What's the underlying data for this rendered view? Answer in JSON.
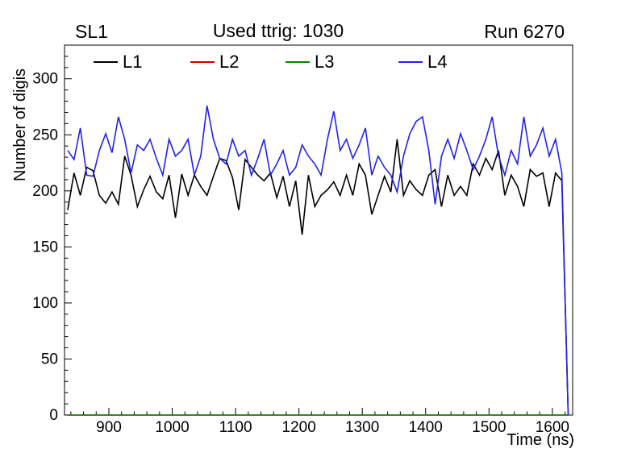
{
  "header": {
    "left": "SL1",
    "center": "Used ttrig: 1030",
    "right": "Run 6270"
  },
  "axes": {
    "x_label": "Time (ns)",
    "y_label": "Number of digis",
    "x_ticks": [
      900,
      1000,
      1100,
      1200,
      1300,
      1400,
      1500,
      1600
    ],
    "x_minor_step": 20,
    "y_ticks": [
      0,
      50,
      100,
      150,
      200,
      250,
      300
    ],
    "y_minor_step": 10
  },
  "legend": [
    {
      "label": "L1",
      "color": "#000000"
    },
    {
      "label": "L2",
      "color": "#cc0000"
    },
    {
      "label": "L3",
      "color": "#008800"
    },
    {
      "label": "L4",
      "color": "#2222ee"
    }
  ],
  "chart_data": {
    "type": "line",
    "title": "Used ttrig: 1030",
    "xlabel": "Time (ns)",
    "ylabel": "Number of digis",
    "xlim": [
      830,
      1632
    ],
    "ylim": [
      0,
      330
    ],
    "grid": false,
    "legend_position": "top",
    "x": [
      835,
      845,
      855,
      865,
      875,
      885,
      895,
      905,
      915,
      925,
      935,
      945,
      955,
      965,
      975,
      985,
      995,
      1005,
      1015,
      1025,
      1035,
      1045,
      1055,
      1065,
      1075,
      1085,
      1095,
      1105,
      1115,
      1125,
      1135,
      1145,
      1155,
      1165,
      1175,
      1185,
      1195,
      1205,
      1215,
      1225,
      1235,
      1245,
      1255,
      1265,
      1275,
      1285,
      1295,
      1305,
      1315,
      1325,
      1335,
      1345,
      1355,
      1365,
      1375,
      1385,
      1395,
      1405,
      1415,
      1425,
      1435,
      1445,
      1455,
      1465,
      1475,
      1485,
      1495,
      1505,
      1515,
      1525,
      1535,
      1545,
      1555,
      1565,
      1575,
      1585,
      1595,
      1605,
      1615,
      1625
    ],
    "series": [
      {
        "name": "L1",
        "color": "#000000",
        "values": [
          183,
          216,
          196,
          221,
          218,
          196,
          189,
          199,
          188,
          231,
          214,
          186,
          201,
          213,
          199,
          193,
          214,
          176,
          215,
          196,
          214,
          204,
          196,
          213,
          229,
          227,
          212,
          183,
          228,
          221,
          214,
          209,
          216,
          194,
          213,
          186,
          209,
          161,
          214,
          186,
          196,
          201,
          208,
          196,
          214,
          196,
          224,
          214,
          179,
          196,
          213,
          199,
          246,
          196,
          209,
          201,
          196,
          214,
          219,
          186,
          214,
          196,
          204,
          196,
          224,
          214,
          229,
          219,
          236,
          196,
          214,
          204,
          186,
          219,
          213,
          216,
          186,
          216,
          209,
          0
        ]
      },
      {
        "name": "L2",
        "color": "#cc0000",
        "values": [
          0,
          0,
          0,
          0,
          0,
          0,
          0,
          0,
          0,
          0,
          0,
          0,
          0,
          0,
          0,
          0,
          0,
          0,
          0,
          0,
          0,
          0,
          0,
          0,
          0,
          0,
          0,
          0,
          0,
          0,
          0,
          0,
          0,
          0,
          0,
          0,
          0,
          0,
          0,
          0,
          0,
          0,
          0,
          0,
          0,
          0,
          0,
          0,
          0,
          0,
          0,
          0,
          0,
          0,
          0,
          0,
          0,
          0,
          0,
          0,
          0,
          0,
          0,
          0,
          0,
          0,
          0,
          0,
          0,
          0,
          0,
          0,
          0,
          0,
          0,
          0,
          0,
          0,
          0,
          0
        ]
      },
      {
        "name": "L3",
        "color": "#008800",
        "values": [
          0,
          0,
          0,
          0,
          0,
          0,
          0,
          0,
          0,
          0,
          0,
          0,
          0,
          0,
          0,
          0,
          0,
          0,
          0,
          0,
          0,
          0,
          0,
          0,
          0,
          0,
          0,
          0,
          0,
          0,
          0,
          0,
          0,
          0,
          0,
          0,
          0,
          0,
          0,
          0,
          0,
          0,
          0,
          0,
          0,
          0,
          0,
          0,
          0,
          0,
          0,
          0,
          0,
          0,
          0,
          0,
          0,
          0,
          0,
          0,
          0,
          0,
          0,
          0,
          0,
          0,
          0,
          0,
          0,
          0,
          0,
          0,
          0,
          0,
          0,
          0,
          0,
          0,
          0,
          0
        ]
      },
      {
        "name": "L4",
        "color": "#2222ee",
        "values": [
          236,
          228,
          256,
          214,
          213,
          236,
          251,
          234,
          266,
          246,
          216,
          241,
          236,
          246,
          229,
          214,
          246,
          231,
          236,
          246,
          214,
          231,
          276,
          246,
          229,
          224,
          246,
          231,
          236,
          214,
          229,
          246,
          214,
          224,
          236,
          214,
          221,
          241,
          231,
          224,
          214,
          246,
          271,
          236,
          246,
          229,
          241,
          256,
          214,
          231,
          221,
          214,
          199,
          231,
          251,
          262,
          266,
          236,
          188,
          231,
          246,
          229,
          251,
          236,
          219,
          231,
          246,
          266,
          231,
          214,
          236,
          224,
          266,
          231,
          241,
          256,
          231,
          246,
          216,
          0
        ]
      }
    ]
  }
}
